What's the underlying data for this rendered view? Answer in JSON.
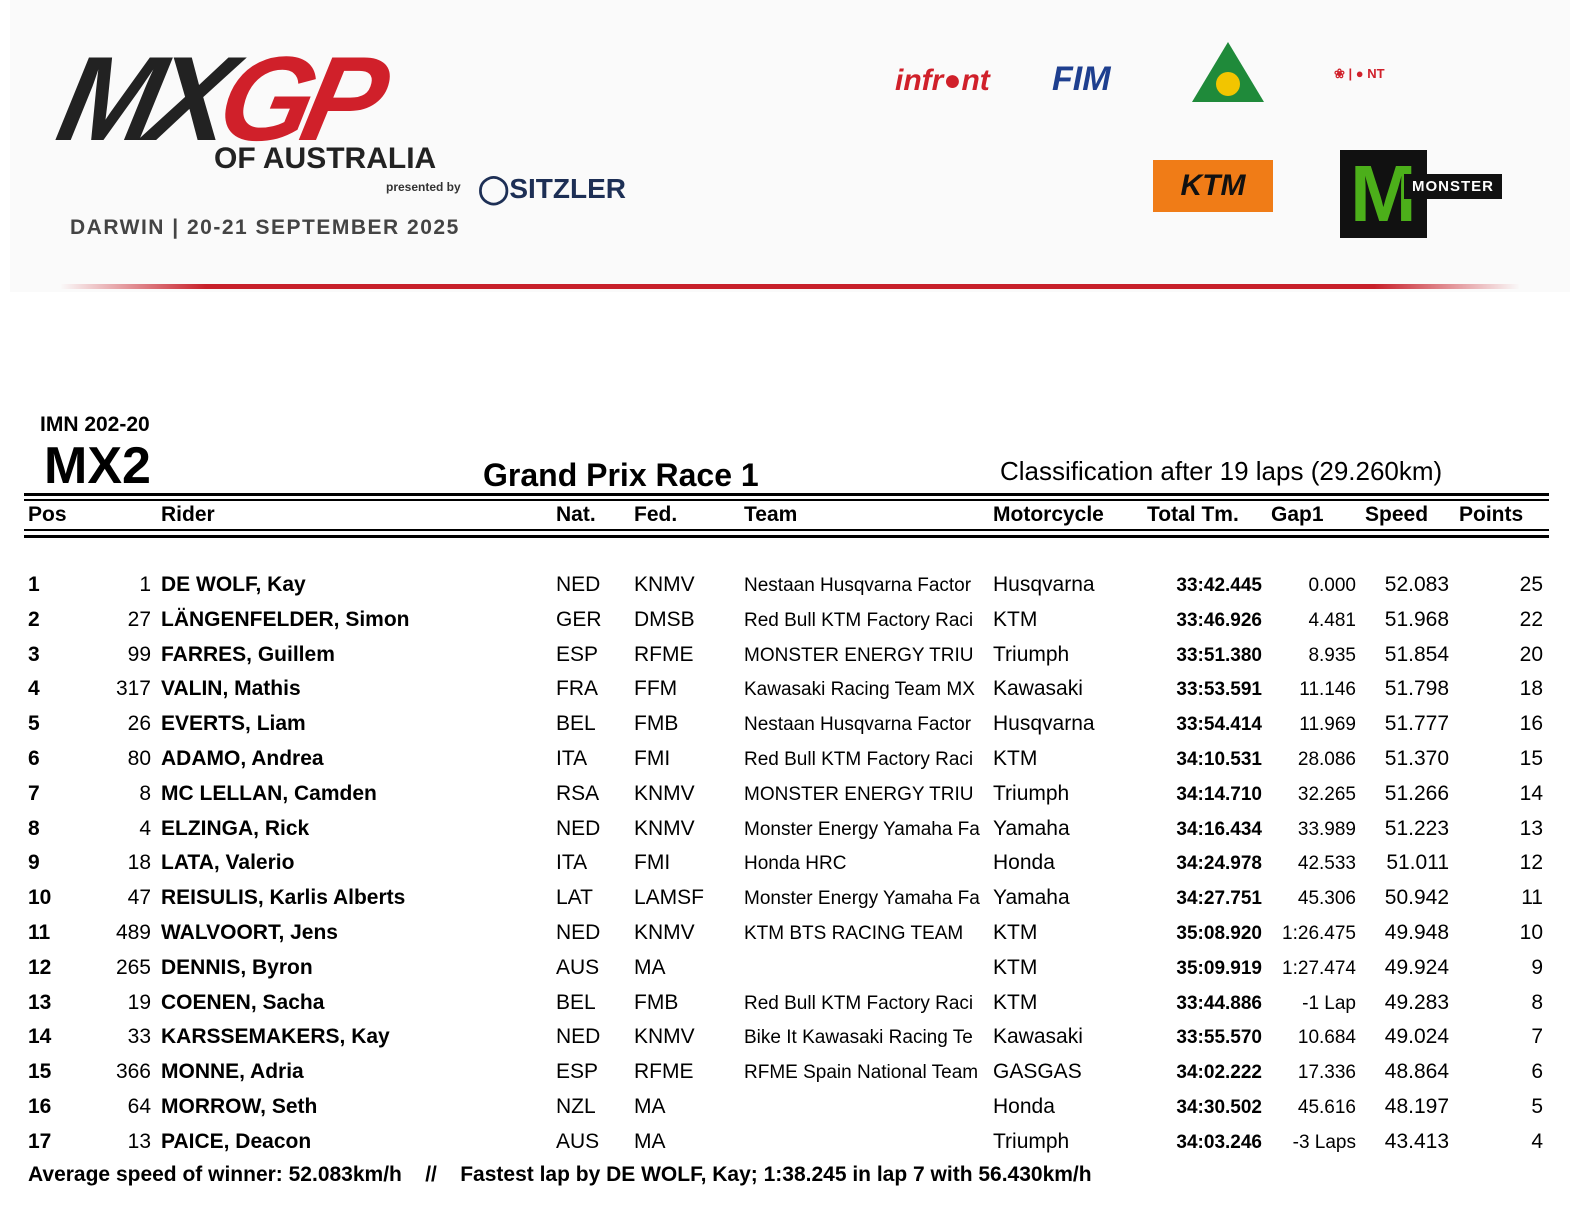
{
  "header": {
    "logo_main": "MXGP",
    "event": "OF AUSTRALIA",
    "presented_by": "presented by",
    "sponsor": "SITZLER",
    "date_venue": "DARWIN | 20-21 SEPTEMBER 2025",
    "partner_logos": [
      "infront",
      "FIM",
      "Motorcycling Australia",
      "Northern Territory",
      "KTM",
      "Monster Energy"
    ],
    "accent_color": "#d0202a"
  },
  "doc": {
    "code": "IMN 202-20",
    "class": "MX2",
    "race": "Grand Prix Race 1",
    "classification": "Classification after 19 laps (29.260km)"
  },
  "columns": [
    "Pos",
    "Rider",
    "Nat.",
    "Fed.",
    "Team",
    "Motorcycle",
    "Total Tm.",
    "Gap1",
    "Speed",
    "Points"
  ],
  "rows": [
    {
      "pos": "1",
      "num": "1",
      "rider": "DE WOLF, Kay",
      "nat": "NED",
      "fed": "KNMV",
      "team": "Nestaan Husqvarna Factor",
      "moto": "Husqvarna",
      "total": "33:42.445",
      "gap": "0.000",
      "speed": "52.083",
      "points": "25"
    },
    {
      "pos": "2",
      "num": "27",
      "rider": "LÄNGENFELDER, Simon",
      "nat": "GER",
      "fed": "DMSB",
      "team": "Red Bull KTM Factory Raci",
      "moto": "KTM",
      "total": "33:46.926",
      "gap": "4.481",
      "speed": "51.968",
      "points": "22"
    },
    {
      "pos": "3",
      "num": "99",
      "rider": "FARRES, Guillem",
      "nat": "ESP",
      "fed": "RFME",
      "team": "MONSTER ENERGY TRIU",
      "moto": "Triumph",
      "total": "33:51.380",
      "gap": "8.935",
      "speed": "51.854",
      "points": "20"
    },
    {
      "pos": "4",
      "num": "317",
      "rider": "VALIN, Mathis",
      "nat": "FRA",
      "fed": "FFM",
      "team": "Kawasaki Racing Team MX",
      "moto": "Kawasaki",
      "total": "33:53.591",
      "gap": "11.146",
      "speed": "51.798",
      "points": "18"
    },
    {
      "pos": "5",
      "num": "26",
      "rider": "EVERTS, Liam",
      "nat": "BEL",
      "fed": "FMB",
      "team": "Nestaan Husqvarna Factor",
      "moto": "Husqvarna",
      "total": "33:54.414",
      "gap": "11.969",
      "speed": "51.777",
      "points": "16"
    },
    {
      "pos": "6",
      "num": "80",
      "rider": "ADAMO, Andrea",
      "nat": "ITA",
      "fed": "FMI",
      "team": "Red Bull KTM Factory Raci",
      "moto": "KTM",
      "total": "34:10.531",
      "gap": "28.086",
      "speed": "51.370",
      "points": "15"
    },
    {
      "pos": "7",
      "num": "8",
      "rider": "MC LELLAN, Camden",
      "nat": "RSA",
      "fed": "KNMV",
      "team": "MONSTER ENERGY TRIU",
      "moto": "Triumph",
      "total": "34:14.710",
      "gap": "32.265",
      "speed": "51.266",
      "points": "14"
    },
    {
      "pos": "8",
      "num": "4",
      "rider": "ELZINGA, Rick",
      "nat": "NED",
      "fed": "KNMV",
      "team": "Monster Energy Yamaha Fa",
      "moto": "Yamaha",
      "total": "34:16.434",
      "gap": "33.989",
      "speed": "51.223",
      "points": "13"
    },
    {
      "pos": "9",
      "num": "18",
      "rider": "LATA, Valerio",
      "nat": "ITA",
      "fed": "FMI",
      "team": "Honda HRC",
      "moto": "Honda",
      "total": "34:24.978",
      "gap": "42.533",
      "speed": "51.011",
      "points": "12"
    },
    {
      "pos": "10",
      "num": "47",
      "rider": "REISULIS, Karlis Alberts",
      "nat": "LAT",
      "fed": "LAMSF",
      "team": "Monster Energy Yamaha Fa",
      "moto": "Yamaha",
      "total": "34:27.751",
      "gap": "45.306",
      "speed": "50.942",
      "points": "11"
    },
    {
      "pos": "11",
      "num": "489",
      "rider": "WALVOORT, Jens",
      "nat": "NED",
      "fed": "KNMV",
      "team": "KTM BTS RACING TEAM",
      "moto": "KTM",
      "total": "35:08.920",
      "gap": "1:26.475",
      "speed": "49.948",
      "points": "10"
    },
    {
      "pos": "12",
      "num": "265",
      "rider": "DENNIS, Byron",
      "nat": "AUS",
      "fed": "MA",
      "team": "",
      "moto": "KTM",
      "total": "35:09.919",
      "gap": "1:27.474",
      "speed": "49.924",
      "points": "9"
    },
    {
      "pos": "13",
      "num": "19",
      "rider": "COENEN, Sacha",
      "nat": "BEL",
      "fed": "FMB",
      "team": "Red Bull KTM Factory Raci",
      "moto": "KTM",
      "total": "33:44.886",
      "gap": "-1 Lap",
      "speed": "49.283",
      "points": "8"
    },
    {
      "pos": "14",
      "num": "33",
      "rider": "KARSSEMAKERS, Kay",
      "nat": "NED",
      "fed": "KNMV",
      "team": "Bike It Kawasaki Racing Te",
      "moto": "Kawasaki",
      "total": "33:55.570",
      "gap": "10.684",
      "speed": "49.024",
      "points": "7"
    },
    {
      "pos": "15",
      "num": "366",
      "rider": "MONNE, Adria",
      "nat": "ESP",
      "fed": "RFME",
      "team": "RFME Spain National Team",
      "moto": "GASGAS",
      "total": "34:02.222",
      "gap": "17.336",
      "speed": "48.864",
      "points": "6"
    },
    {
      "pos": "16",
      "num": "64",
      "rider": "MORROW, Seth",
      "nat": "NZL",
      "fed": "MA",
      "team": "",
      "moto": "Honda",
      "total": "34:30.502",
      "gap": "45.616",
      "speed": "48.197",
      "points": "5"
    },
    {
      "pos": "17",
      "num": "13",
      "rider": "PAICE, Deacon",
      "nat": "AUS",
      "fed": "MA",
      "team": "",
      "moto": "Triumph",
      "total": "34:03.246",
      "gap": "-3 Laps",
      "speed": "43.413",
      "points": "4"
    }
  ],
  "footer": "Average speed of winner: 52.083km/h    //    Fastest lap by DE WOLF, Kay; 1:38.245 in lap 7 with 56.430km/h"
}
